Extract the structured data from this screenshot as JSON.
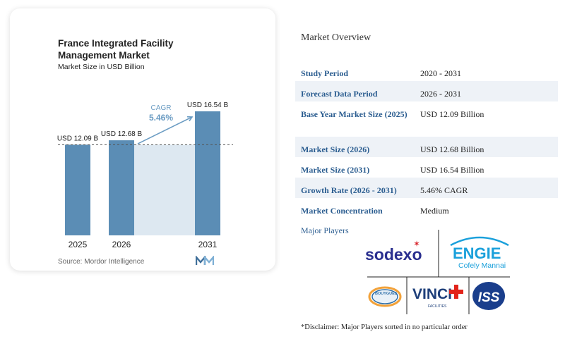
{
  "chart_data": {
    "type": "bar",
    "title": "France Integrated Facility Management Market",
    "subtitle": "Market Size in USD Billion",
    "categories": [
      "2025",
      "2026",
      "2031"
    ],
    "values": [
      12.09,
      12.68,
      16.54
    ],
    "value_labels": [
      "USD 12.09 B",
      "USD 12.68 B",
      "USD 16.54 B"
    ],
    "cagr_label": "CAGR",
    "cagr_value": "5.46%",
    "colors": {
      "bar": "#5b8db5",
      "shade": "#dde8f1",
      "arrow": "#6b9cc3",
      "cagr": "#6b9cc3"
    }
  },
  "source": "Source: Mordor Intelligence",
  "overview": {
    "title": "Market Overview",
    "rows": [
      {
        "key": "Study Period",
        "value": "2020 - 2031"
      },
      {
        "key": "Forecast Data Period",
        "value": "2026 - 2031"
      },
      {
        "key": "Base Year Market Size (2025)",
        "value": "USD 12.09 Billion"
      },
      {
        "key": "Market Size (2026)",
        "value": "USD 12.68 Billion"
      },
      {
        "key": "Market Size (2031)",
        "value": "USD 16.54 Billion"
      },
      {
        "key": "Growth Rate (2026 - 2031)",
        "value": "5.46% CAGR"
      },
      {
        "key": "Market Concentration",
        "value": "Medium"
      }
    ]
  },
  "players": {
    "label": "Major Players",
    "logos": {
      "sodexo": "sodexo",
      "engie": "ENGIE",
      "engie_sub": "Cofely Mannai",
      "bouygues": "BOUYGUES",
      "vinci": "VINCI",
      "vinci_sub": "FACILITIES",
      "iss": "ISS"
    }
  },
  "disclaimer": "*Disclaimer: Major Players sorted in no particular order"
}
